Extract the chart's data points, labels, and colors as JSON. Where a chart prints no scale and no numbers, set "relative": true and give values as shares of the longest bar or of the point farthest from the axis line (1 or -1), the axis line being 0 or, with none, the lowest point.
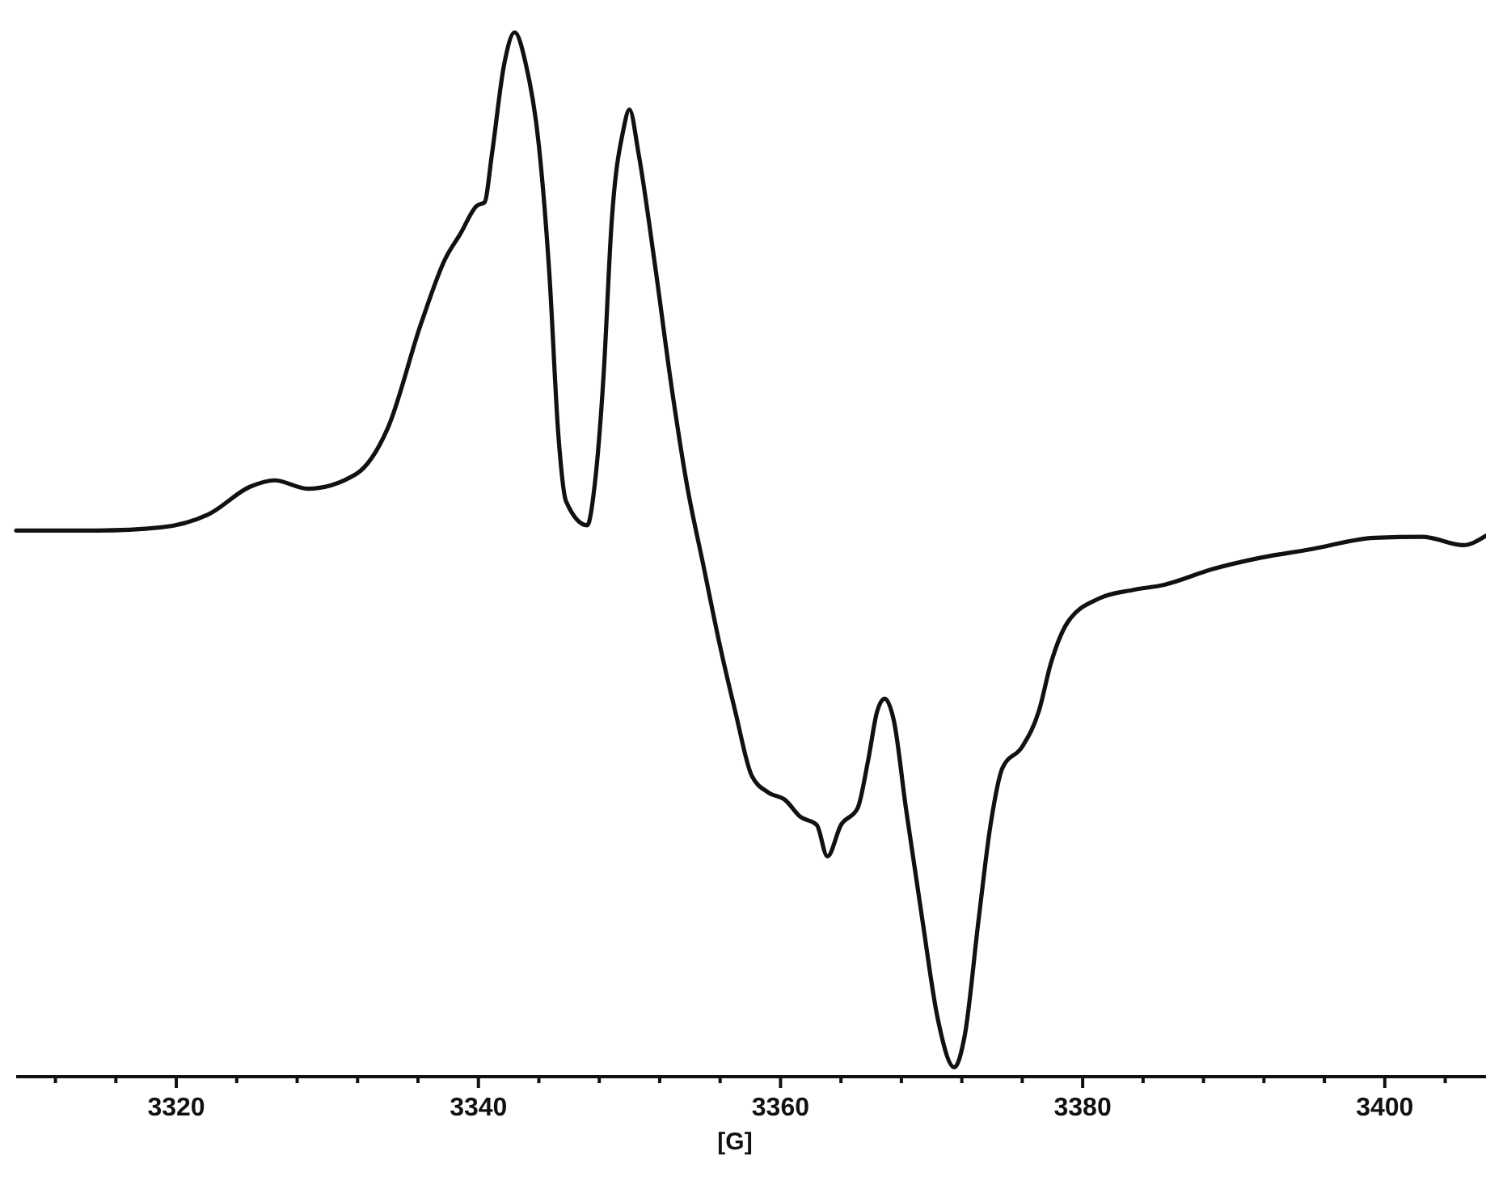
{
  "chart_data": {
    "type": "line",
    "relative": true,
    "xlabel": "[G]",
    "xlim": [
      3309.4,
      3406.7
    ],
    "xticks": [
      {
        "value": 3312,
        "label": null
      },
      {
        "value": 3316,
        "label": null
      },
      3320,
      {
        "value": 3324,
        "label": null
      },
      {
        "value": 3328,
        "label": null
      },
      {
        "value": 3332,
        "label": null
      },
      {
        "value": 3336,
        "label": null
      },
      3340,
      {
        "value": 3344,
        "label": null
      },
      {
        "value": 3348,
        "label": null
      },
      {
        "value": 3352,
        "label": null
      },
      {
        "value": 3356,
        "label": null
      },
      3360,
      {
        "value": 3364,
        "label": null
      },
      {
        "value": 3368,
        "label": null
      },
      {
        "value": 3372,
        "label": null
      },
      {
        "value": 3376,
        "label": null
      },
      3380,
      {
        "value": 3384,
        "label": null
      },
      {
        "value": 3388,
        "label": null
      },
      {
        "value": 3392,
        "label": null
      },
      {
        "value": 3396,
        "label": null
      },
      3400,
      {
        "value": 3404,
        "label": null
      }
    ],
    "grid": false,
    "marker": "none",
    "line_style": "solid",
    "series": [
      {
        "color": "#111111",
        "x": [
          3309.4,
          3314.8,
          3319.0,
          3322.2,
          3324.9,
          3326.5,
          3328.7,
          3331.9,
          3334.0,
          3336.2,
          3337.8,
          3338.8,
          3339.9,
          3340.4,
          3340.9,
          3341.7,
          3342.4,
          3343.1,
          3344.0,
          3344.7,
          3345.3,
          3345.8,
          3347.2,
          3347.7,
          3348.3,
          3348.8,
          3349.6,
          3350.0,
          3350.6,
          3351.7,
          3352.8,
          3353.8,
          3354.9,
          3356.0,
          3357.0,
          3358.1,
          3359.2,
          3360.3,
          3361.3,
          3362.4,
          3363.1,
          3364.0,
          3365.1,
          3365.8,
          3366.4,
          3366.9,
          3367.5,
          3368.3,
          3369.4,
          3370.4,
          3371.5,
          3372.2,
          3373.1,
          3373.9,
          3374.7,
          3376.0,
          3377.1,
          3377.9,
          3379.0,
          3381.1,
          3383.3,
          3385.4,
          3388.6,
          3391.8,
          3395.1,
          3399.3,
          3402.5,
          3405.2,
          3406.7
        ],
        "values": [
          0.523,
          0.523,
          0.526,
          0.539,
          0.565,
          0.571,
          0.563,
          0.577,
          0.621,
          0.721,
          0.783,
          0.807,
          0.834,
          0.837,
          0.884,
          0.969,
          1.0,
          0.972,
          0.892,
          0.768,
          0.613,
          0.551,
          0.528,
          0.567,
          0.675,
          0.814,
          0.907,
          0.926,
          0.884,
          0.776,
          0.659,
          0.567,
          0.489,
          0.412,
          0.35,
          0.288,
          0.272,
          0.265,
          0.249,
          0.241,
          0.211,
          0.241,
          0.257,
          0.303,
          0.35,
          0.362,
          0.341,
          0.257,
          0.149,
          0.056,
          0.009,
          0.04,
          0.149,
          0.241,
          0.296,
          0.316,
          0.35,
          0.396,
          0.435,
          0.458,
          0.466,
          0.471,
          0.486,
          0.497,
          0.505,
          0.516,
          0.517,
          0.509,
          0.518
        ]
      }
    ]
  }
}
